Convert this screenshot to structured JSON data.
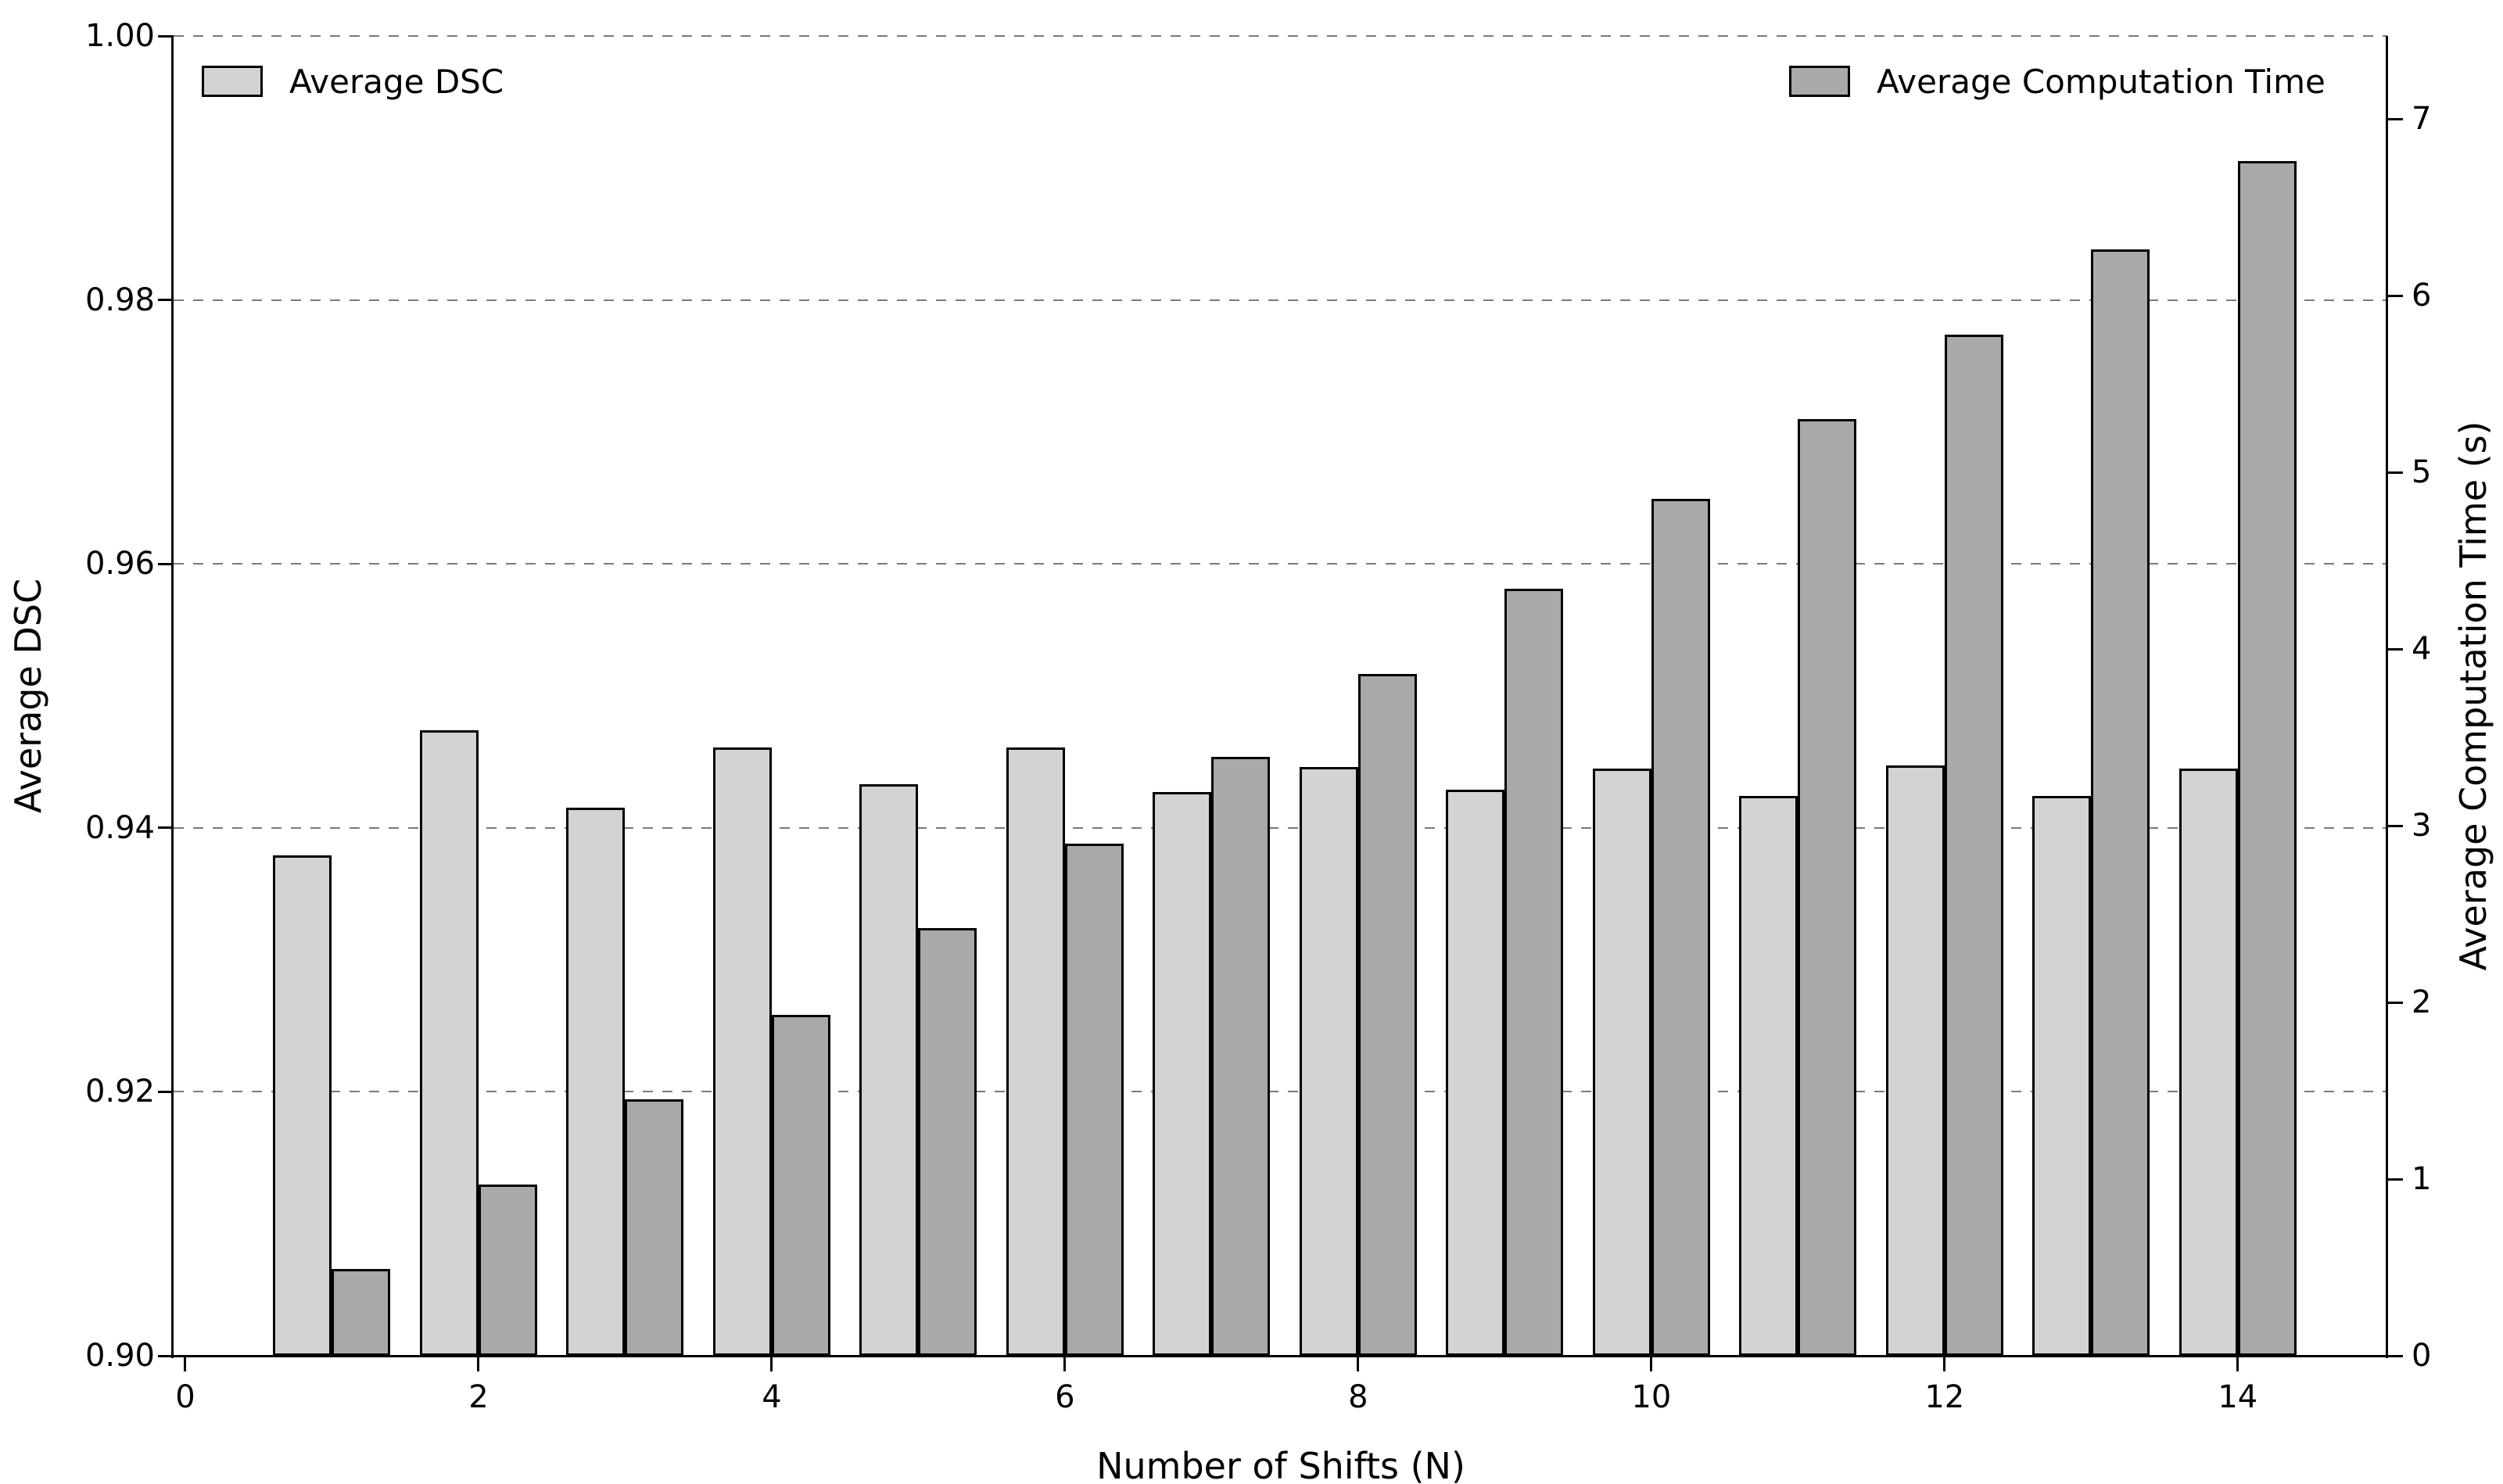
{
  "chart_data": {
    "type": "bar",
    "title": "",
    "xlabel": "Number of Shifts (N)",
    "ylabel_left": "Average DSC",
    "ylabel_right": "Average Computation Time (s)",
    "categories": [
      1,
      2,
      3,
      4,
      5,
      6,
      7,
      8,
      9,
      10,
      11,
      12,
      13,
      14
    ],
    "series": [
      {
        "name": "Average DSC",
        "axis": "left",
        "color": "#d3d3d3",
        "values": [
          0.9379,
          0.9474,
          0.9415,
          0.9461,
          0.9433,
          0.9461,
          0.9427,
          0.9446,
          0.9429,
          0.9445,
          0.9424,
          0.9447,
          0.9424,
          0.9445
        ]
      },
      {
        "name": "Average Computation Time",
        "axis": "right",
        "color": "#a9a9a9",
        "values": [
          0.49,
          0.97,
          1.45,
          1.93,
          2.42,
          2.9,
          3.39,
          3.86,
          4.34,
          4.85,
          5.3,
          5.78,
          6.26,
          6.76
        ]
      }
    ],
    "bar_width": 0.4,
    "edge_color": "#000000",
    "grid": "horizontal-dashed",
    "legend_position": [
      "upper left",
      "upper right"
    ],
    "xlim": [
      -0.08,
      15.02
    ],
    "xticks": [
      0,
      2,
      4,
      6,
      8,
      10,
      12,
      14
    ],
    "xtick_labels": [
      "0",
      "2",
      "4",
      "6",
      "8",
      "10",
      "12",
      "14"
    ],
    "ylim_left": [
      0.9,
      1.0
    ],
    "ytick_labels_left": [
      "0.90",
      "0.92",
      "0.94",
      "0.96",
      "0.98",
      "1.00"
    ],
    "ylim_right": [
      0,
      7.47
    ],
    "ytick_labels_right": [
      "0",
      "1",
      "2",
      "3",
      "4",
      "5",
      "6",
      "7"
    ]
  }
}
